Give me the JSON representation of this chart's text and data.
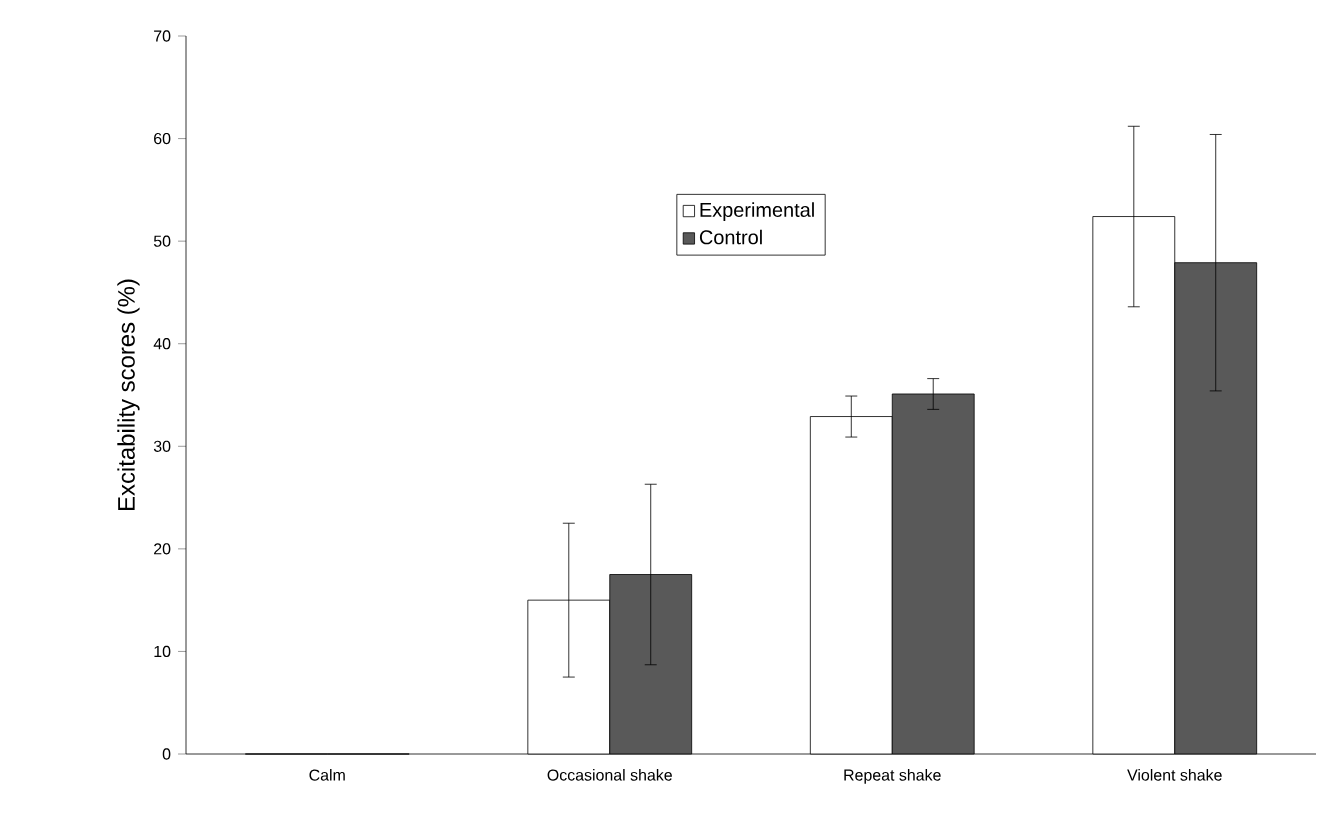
{
  "chart_data": {
    "type": "bar",
    "ylabel": "Excitability scores (%)",
    "categories": [
      "Calm",
      "Occasional shake",
      "Repeat shake",
      "Violent shake"
    ],
    "series": [
      {
        "name": "Experimental",
        "color": "#ffffff",
        "values": [
          0,
          15.0,
          32.9,
          52.4
        ],
        "errors": [
          null,
          7.5,
          2.0,
          8.8
        ]
      },
      {
        "name": "Control",
        "color": "#595959",
        "values": [
          0,
          17.5,
          35.1,
          47.9
        ],
        "errors": [
          null,
          8.8,
          1.5,
          12.5
        ]
      }
    ],
    "ylim": [
      0,
      70
    ],
    "yticks": [
      0,
      10,
      20,
      30,
      40,
      50,
      60,
      70
    ],
    "grid": false,
    "legend": "top"
  }
}
